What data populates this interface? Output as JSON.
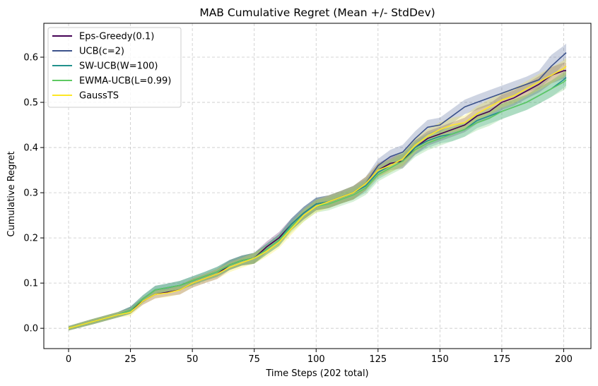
{
  "chart_data": {
    "type": "line",
    "title": "MAB Cumulative Regret (Mean +/- StdDev)",
    "xlabel": "Time Steps (202 total)",
    "ylabel": "Cumulative Regret",
    "xlim": [
      -10,
      211
    ],
    "ylim": [
      -0.045,
      0.675
    ],
    "xticks": [
      0,
      25,
      50,
      75,
      100,
      125,
      150,
      175,
      200
    ],
    "xtick_labels": [
      "0",
      "25",
      "50",
      "75",
      "100",
      "125",
      "150",
      "175",
      "200"
    ],
    "yticks": [
      0.0,
      0.1,
      0.2,
      0.3,
      0.4,
      0.5,
      0.6
    ],
    "ytick_labels": [
      "0.0",
      "0.1",
      "0.2",
      "0.3",
      "0.4",
      "0.5",
      "0.6"
    ],
    "grid": true,
    "legend_position": "top-left",
    "series": [
      {
        "name": "Eps-Greedy(0.1)",
        "color": "#440154",
        "x": [
          0,
          10,
          20,
          25,
          30,
          35,
          40,
          45,
          50,
          55,
          60,
          65,
          70,
          75,
          80,
          85,
          90,
          95,
          100,
          105,
          110,
          115,
          120,
          125,
          130,
          135,
          140,
          145,
          150,
          155,
          160,
          165,
          170,
          175,
          180,
          185,
          190,
          195,
          200,
          201
        ],
        "values": [
          0.0,
          0.015,
          0.03,
          0.04,
          0.06,
          0.075,
          0.08,
          0.085,
          0.1,
          0.11,
          0.12,
          0.14,
          0.15,
          0.155,
          0.18,
          0.2,
          0.23,
          0.255,
          0.275,
          0.28,
          0.29,
          0.3,
          0.32,
          0.35,
          0.365,
          0.37,
          0.4,
          0.42,
          0.43,
          0.44,
          0.45,
          0.47,
          0.48,
          0.5,
          0.51,
          0.525,
          0.54,
          0.56,
          0.57,
          0.57
        ],
        "std": [
          0.005,
          0.006,
          0.006,
          0.008,
          0.008,
          0.009,
          0.009,
          0.01,
          0.01,
          0.01,
          0.011,
          0.011,
          0.011,
          0.012,
          0.012,
          0.013,
          0.013,
          0.014,
          0.014,
          0.014,
          0.014,
          0.015,
          0.015,
          0.015,
          0.015,
          0.016,
          0.016,
          0.016,
          0.016,
          0.016,
          0.016,
          0.017,
          0.017,
          0.017,
          0.017,
          0.017,
          0.018,
          0.018,
          0.018,
          0.018
        ]
      },
      {
        "name": "UCB(c=2)",
        "color": "#3b528b",
        "x": [
          0,
          10,
          20,
          25,
          30,
          35,
          40,
          45,
          50,
          55,
          60,
          65,
          70,
          75,
          80,
          85,
          90,
          95,
          100,
          105,
          110,
          115,
          120,
          125,
          130,
          135,
          140,
          145,
          150,
          155,
          160,
          165,
          170,
          175,
          180,
          185,
          190,
          195,
          200,
          201
        ],
        "values": [
          0.0,
          0.015,
          0.03,
          0.04,
          0.065,
          0.085,
          0.09,
          0.095,
          0.105,
          0.115,
          0.125,
          0.14,
          0.15,
          0.155,
          0.175,
          0.195,
          0.23,
          0.255,
          0.275,
          0.28,
          0.29,
          0.3,
          0.32,
          0.36,
          0.38,
          0.39,
          0.42,
          0.445,
          0.45,
          0.47,
          0.49,
          0.5,
          0.51,
          0.52,
          0.53,
          0.54,
          0.55,
          0.58,
          0.605,
          0.61
        ],
        "std": [
          0.005,
          0.006,
          0.006,
          0.008,
          0.008,
          0.009,
          0.009,
          0.01,
          0.01,
          0.01,
          0.011,
          0.011,
          0.011,
          0.012,
          0.012,
          0.013,
          0.013,
          0.014,
          0.014,
          0.014,
          0.014,
          0.015,
          0.015,
          0.015,
          0.015,
          0.016,
          0.016,
          0.016,
          0.016,
          0.016,
          0.016,
          0.017,
          0.017,
          0.017,
          0.017,
          0.017,
          0.02,
          0.025,
          0.02,
          0.02
        ]
      },
      {
        "name": "SW-UCB(W=100)",
        "color": "#21918c",
        "x": [
          0,
          10,
          20,
          25,
          30,
          35,
          40,
          45,
          50,
          55,
          60,
          65,
          70,
          75,
          80,
          85,
          90,
          95,
          100,
          105,
          110,
          115,
          120,
          125,
          130,
          135,
          140,
          145,
          150,
          155,
          160,
          165,
          170,
          175,
          180,
          185,
          190,
          195,
          200,
          201
        ],
        "values": [
          0.0,
          0.015,
          0.03,
          0.04,
          0.065,
          0.085,
          0.09,
          0.095,
          0.105,
          0.115,
          0.125,
          0.14,
          0.15,
          0.155,
          0.175,
          0.195,
          0.23,
          0.255,
          0.275,
          0.28,
          0.29,
          0.3,
          0.315,
          0.345,
          0.36,
          0.375,
          0.4,
          0.415,
          0.425,
          0.43,
          0.44,
          0.46,
          0.47,
          0.48,
          0.49,
          0.5,
          0.515,
          0.53,
          0.55,
          0.555
        ],
        "std": [
          0.005,
          0.006,
          0.006,
          0.008,
          0.008,
          0.009,
          0.009,
          0.01,
          0.01,
          0.01,
          0.011,
          0.011,
          0.011,
          0.012,
          0.012,
          0.013,
          0.013,
          0.014,
          0.014,
          0.014,
          0.014,
          0.015,
          0.015,
          0.015,
          0.015,
          0.016,
          0.016,
          0.016,
          0.016,
          0.016,
          0.016,
          0.017,
          0.017,
          0.017,
          0.017,
          0.017,
          0.018,
          0.018,
          0.018,
          0.018
        ]
      },
      {
        "name": "EWMA-UCB(L=0.99)",
        "color": "#5ec962",
        "x": [
          0,
          10,
          20,
          25,
          30,
          35,
          40,
          45,
          50,
          55,
          60,
          65,
          70,
          75,
          80,
          85,
          90,
          95,
          100,
          105,
          110,
          115,
          120,
          125,
          130,
          135,
          140,
          145,
          150,
          155,
          160,
          165,
          170,
          175,
          180,
          185,
          190,
          195,
          200,
          201
        ],
        "values": [
          0.0,
          0.015,
          0.03,
          0.04,
          0.065,
          0.085,
          0.09,
          0.095,
          0.105,
          0.115,
          0.125,
          0.14,
          0.15,
          0.155,
          0.175,
          0.195,
          0.225,
          0.25,
          0.27,
          0.275,
          0.285,
          0.295,
          0.31,
          0.34,
          0.355,
          0.37,
          0.395,
          0.41,
          0.42,
          0.43,
          0.44,
          0.455,
          0.465,
          0.48,
          0.49,
          0.5,
          0.515,
          0.53,
          0.545,
          0.55
        ],
        "std": [
          0.005,
          0.006,
          0.006,
          0.008,
          0.008,
          0.009,
          0.009,
          0.01,
          0.01,
          0.01,
          0.011,
          0.011,
          0.011,
          0.012,
          0.012,
          0.013,
          0.013,
          0.014,
          0.014,
          0.014,
          0.014,
          0.015,
          0.015,
          0.015,
          0.015,
          0.016,
          0.016,
          0.016,
          0.016,
          0.016,
          0.016,
          0.017,
          0.017,
          0.017,
          0.017,
          0.017,
          0.018,
          0.018,
          0.018,
          0.018
        ]
      },
      {
        "name": "GaussTS",
        "color": "#fde725",
        "x": [
          0,
          10,
          20,
          25,
          30,
          35,
          40,
          45,
          50,
          55,
          60,
          65,
          70,
          75,
          80,
          85,
          90,
          95,
          100,
          105,
          110,
          115,
          120,
          125,
          130,
          135,
          140,
          145,
          150,
          155,
          160,
          165,
          170,
          175,
          180,
          185,
          190,
          195,
          200,
          201
        ],
        "values": [
          0.0,
          0.015,
          0.03,
          0.035,
          0.06,
          0.075,
          0.078,
          0.085,
          0.1,
          0.11,
          0.12,
          0.135,
          0.145,
          0.155,
          0.17,
          0.19,
          0.22,
          0.25,
          0.27,
          0.28,
          0.29,
          0.3,
          0.32,
          0.35,
          0.36,
          0.375,
          0.405,
          0.425,
          0.44,
          0.45,
          0.455,
          0.475,
          0.49,
          0.505,
          0.515,
          0.53,
          0.545,
          0.56,
          0.575,
          0.58
        ],
        "std": [
          0.005,
          0.006,
          0.006,
          0.008,
          0.008,
          0.009,
          0.009,
          0.01,
          0.01,
          0.01,
          0.011,
          0.011,
          0.011,
          0.012,
          0.012,
          0.013,
          0.013,
          0.014,
          0.014,
          0.014,
          0.014,
          0.015,
          0.015,
          0.015,
          0.015,
          0.016,
          0.016,
          0.016,
          0.016,
          0.016,
          0.016,
          0.017,
          0.017,
          0.017,
          0.017,
          0.017,
          0.018,
          0.018,
          0.018,
          0.018
        ]
      }
    ]
  }
}
